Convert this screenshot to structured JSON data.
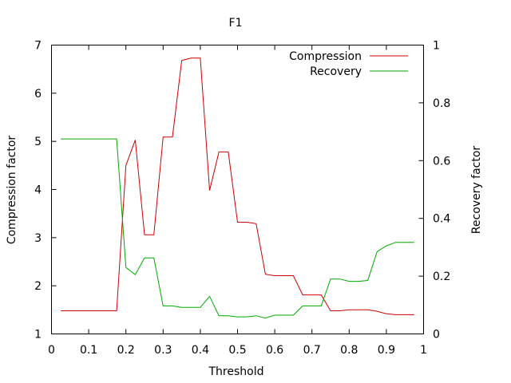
{
  "chart_data": {
    "type": "line",
    "title": "F1",
    "xlabel": "Threshold",
    "ylabel": "Compression factor",
    "y2label": "Recovery factor",
    "xlim": [
      0,
      1
    ],
    "ylim": [
      1,
      7
    ],
    "y2lim": [
      0,
      1
    ],
    "xticks": [
      0,
      0.1,
      0.2,
      0.3,
      0.4,
      0.5,
      0.6,
      0.7,
      0.8,
      0.9,
      1
    ],
    "xtick_labels": [
      "0",
      "0.1",
      "0.2",
      "0.3",
      "0.4",
      "0.5",
      "0.6",
      "0.7",
      "0.8",
      "0.9",
      "1"
    ],
    "yticks": [
      1,
      2,
      3,
      4,
      5,
      6,
      7
    ],
    "ytick_labels": [
      "1",
      "2",
      "3",
      "4",
      "5",
      "6",
      "7"
    ],
    "y2ticks": [
      0,
      0.2,
      0.4,
      0.6,
      0.8,
      1
    ],
    "y2tick_labels": [
      "0",
      "0.2",
      "0.4",
      "0.6",
      "0.8",
      "1"
    ],
    "legend_position": "top-right",
    "grid": false,
    "series": [
      {
        "name": "Compression",
        "axis": "left",
        "color": "#cc0000",
        "x": [
          0.025,
          0.05,
          0.075,
          0.1,
          0.125,
          0.15,
          0.175,
          0.2,
          0.225,
          0.25,
          0.275,
          0.3,
          0.325,
          0.35,
          0.375,
          0.4,
          0.425,
          0.45,
          0.475,
          0.5,
          0.525,
          0.55,
          0.575,
          0.6,
          0.625,
          0.65,
          0.675,
          0.7,
          0.725,
          0.75,
          0.775,
          0.8,
          0.825,
          0.85,
          0.875,
          0.9,
          0.925,
          0.95,
          0.975
        ],
        "y": [
          1.48,
          1.48,
          1.48,
          1.48,
          1.48,
          1.48,
          1.48,
          4.5,
          5.03,
          3.06,
          3.06,
          5.09,
          5.09,
          6.68,
          6.73,
          6.73,
          3.98,
          4.78,
          4.78,
          3.32,
          3.32,
          3.29,
          2.24,
          2.21,
          2.21,
          2.21,
          1.81,
          1.81,
          1.81,
          1.48,
          1.48,
          1.5,
          1.5,
          1.5,
          1.47,
          1.42,
          1.4,
          1.4,
          1.4
        ]
      },
      {
        "name": "Recovery",
        "axis": "right",
        "color": "#00aa00",
        "x": [
          0.025,
          0.05,
          0.075,
          0.1,
          0.125,
          0.15,
          0.175,
          0.2,
          0.225,
          0.25,
          0.275,
          0.3,
          0.325,
          0.35,
          0.375,
          0.4,
          0.425,
          0.45,
          0.475,
          0.5,
          0.525,
          0.55,
          0.575,
          0.6,
          0.625,
          0.65,
          0.675,
          0.7,
          0.725,
          0.75,
          0.775,
          0.8,
          0.825,
          0.85,
          0.875,
          0.9,
          0.925,
          0.95,
          0.975
        ],
        "y": [
          0.675,
          0.675,
          0.675,
          0.675,
          0.675,
          0.675,
          0.675,
          0.23,
          0.205,
          0.263,
          0.263,
          0.097,
          0.097,
          0.092,
          0.092,
          0.092,
          0.13,
          0.063,
          0.063,
          0.059,
          0.059,
          0.063,
          0.055,
          0.065,
          0.065,
          0.065,
          0.097,
          0.097,
          0.097,
          0.19,
          0.19,
          0.182,
          0.182,
          0.185,
          0.285,
          0.305,
          0.317,
          0.317,
          0.317
        ]
      }
    ]
  }
}
